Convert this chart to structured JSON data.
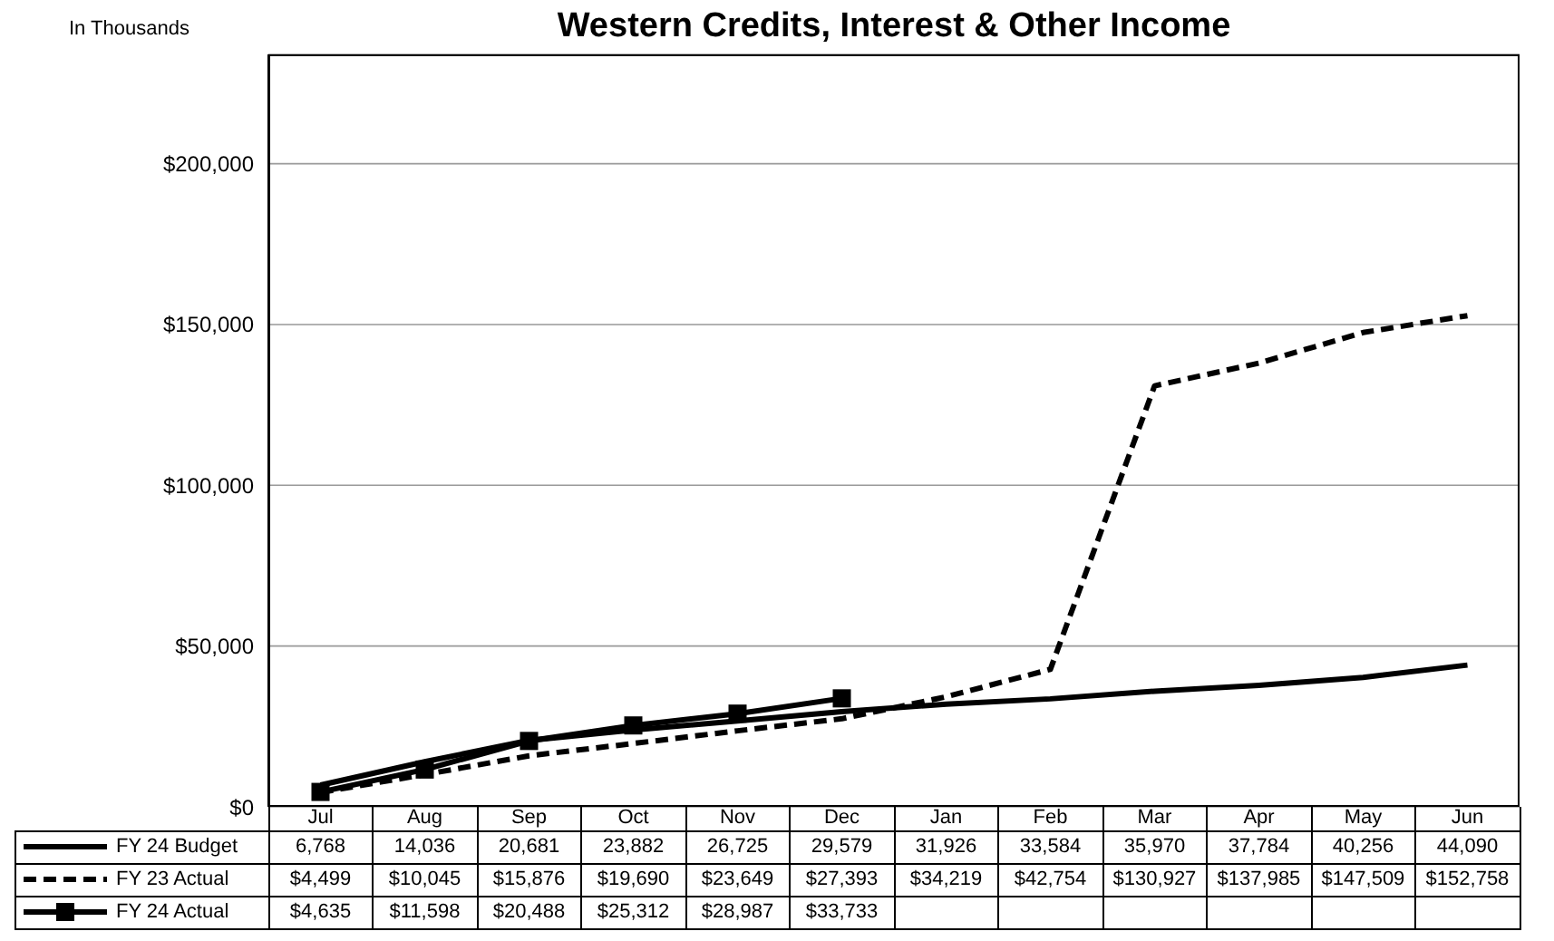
{
  "chart_data": {
    "type": "line",
    "title": "Western Credits, Interest & Other Income",
    "annotations": [
      "In Thousands"
    ],
    "categories": [
      "Jul",
      "Aug",
      "Sep",
      "Oct",
      "Nov",
      "Dec",
      "Jan",
      "Feb",
      "Mar",
      "Apr",
      "May",
      "Jun"
    ],
    "series": [
      {
        "name": "FY 24 Budget",
        "color": "#000000",
        "line_style": "solid",
        "marker": "none",
        "values": [
          6768,
          14036,
          20681,
          23882,
          26725,
          29579,
          31926,
          33584,
          35970,
          37784,
          40256,
          44090
        ],
        "value_labels": [
          "6,768",
          "14,036",
          "20,681",
          "23,882",
          "26,725",
          "29,579",
          "31,926",
          "33,584",
          "35,970",
          "37,784",
          "40,256",
          "44,090"
        ]
      },
      {
        "name": "FY 23 Actual",
        "color": "#000000",
        "line_style": "dashed",
        "marker": "none",
        "values": [
          4499,
          10045,
          15876,
          19690,
          23649,
          27393,
          34219,
          42754,
          130927,
          137985,
          147509,
          152758
        ],
        "value_labels": [
          "$4,499",
          "$10,045",
          "$15,876",
          "$19,690",
          "$23,649",
          "$27,393",
          "$34,219",
          "$42,754",
          "$130,927",
          "$137,985",
          "$147,509",
          "$152,758"
        ]
      },
      {
        "name": "FY 24 Actual",
        "color": "#000000",
        "line_style": "solid",
        "marker": "square",
        "values": [
          4635,
          11598,
          20488,
          25312,
          28987,
          33733,
          null,
          null,
          null,
          null,
          null,
          null
        ],
        "value_labels": [
          "$4,635",
          "$11,598",
          "$20,488",
          "$25,312",
          "$28,987",
          "$33,733",
          null,
          null,
          null,
          null,
          null,
          null
        ]
      }
    ],
    "ylim": [
      0,
      234000
    ],
    "yticks": [
      {
        "value": 0,
        "label": "$0"
      },
      {
        "value": 50000,
        "label": "$50,000"
      },
      {
        "value": 100000,
        "label": "$100,000"
      },
      {
        "value": 150000,
        "label": "$150,000"
      },
      {
        "value": 200000,
        "label": "$200,000"
      }
    ],
    "grid": "y",
    "legend": "bottom left"
  }
}
